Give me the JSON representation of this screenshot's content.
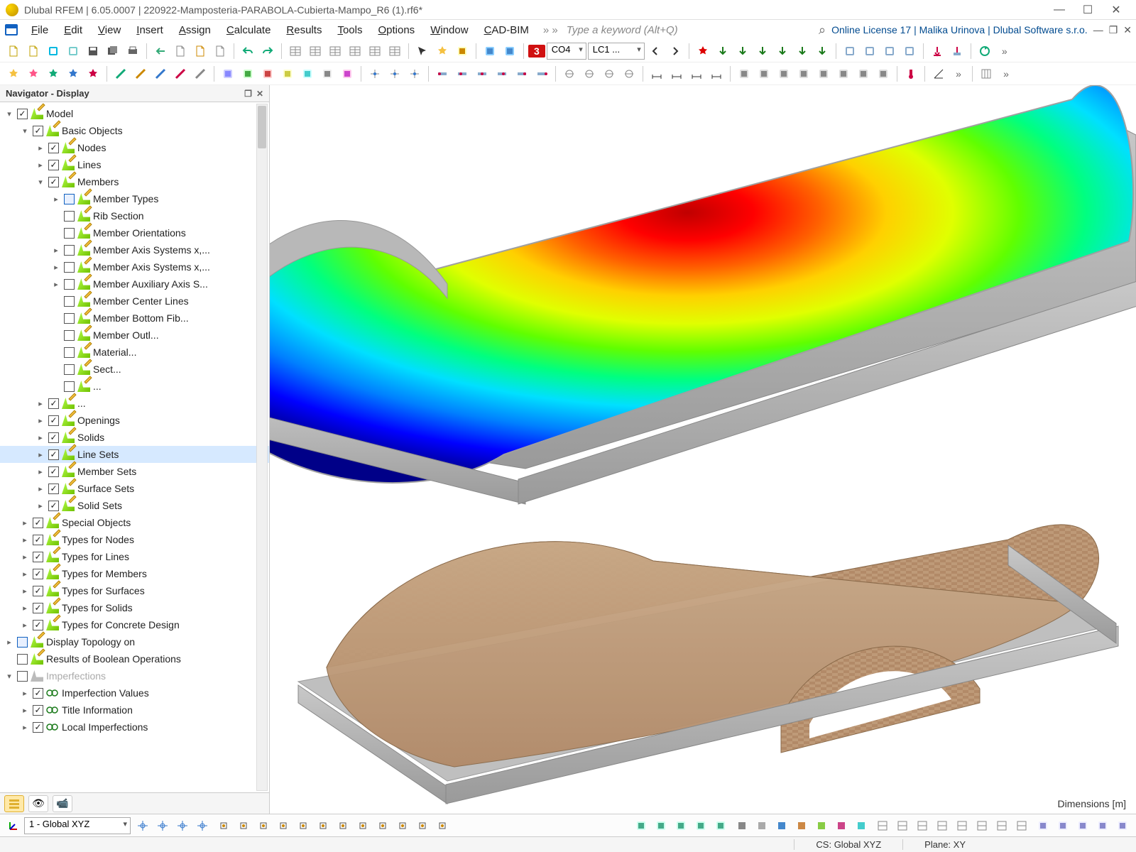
{
  "window": {
    "title": "Dlubal RFEM | 6.05.0007 | 220922-Mamposteria-PARABOLA-Cubierta-Mampo_R6 (1).rf6*",
    "min": "—",
    "max": "☐",
    "close": "✕"
  },
  "menu": {
    "items": [
      "File",
      "Edit",
      "View",
      "Insert",
      "Assign",
      "Calculate",
      "Results",
      "Tools",
      "Options",
      "Window",
      "CAD-BIM"
    ],
    "chevrons": "»  »",
    "keyword_placeholder": "Type a keyword (Alt+Q)",
    "search_icon": "⌕",
    "license_text": "Online License 17 | Malika Urinova | Dlubal Software s.r.o.",
    "mdi_min": "—",
    "mdi_close": "✕",
    "mdi_restore": "❐"
  },
  "toolbar1": {
    "red_number": "3",
    "combo_co": "CO4",
    "combo_lc": "LC1 ..."
  },
  "navigator": {
    "title": "Navigator - Display",
    "detach": "❐",
    "close": "✕",
    "tree": [
      {
        "d": 0,
        "tw": "▾",
        "chk": true,
        "ic": "pencil",
        "label": "Model"
      },
      {
        "d": 1,
        "tw": "▾",
        "chk": true,
        "ic": "pencil",
        "label": "Basic Objects"
      },
      {
        "d": 2,
        "tw": "▸",
        "chk": true,
        "ic": "pencil",
        "label": "Nodes"
      },
      {
        "d": 2,
        "tw": "▸",
        "chk": true,
        "ic": "pencil",
        "label": "Lines"
      },
      {
        "d": 2,
        "tw": "▾",
        "chk": true,
        "ic": "pencil",
        "label": "Members"
      },
      {
        "d": 3,
        "tw": "▸",
        "chk": false,
        "ic": "pencil",
        "label": "Member Types",
        "cbstyle": "blue"
      },
      {
        "d": 3,
        "tw": "",
        "chk": false,
        "ic": "pencil",
        "label": "Rib Section"
      },
      {
        "d": 3,
        "tw": "",
        "chk": false,
        "ic": "pencil",
        "label": "Member Orientations"
      },
      {
        "d": 3,
        "tw": "▸",
        "chk": false,
        "ic": "pencil",
        "label": "Member Axis Systems x,..."
      },
      {
        "d": 3,
        "tw": "▸",
        "chk": false,
        "ic": "pencil",
        "label": "Member Axis Systems x,..."
      },
      {
        "d": 3,
        "tw": "▸",
        "chk": false,
        "ic": "pencil",
        "label": "Member Auxiliary Axis S..."
      },
      {
        "d": 3,
        "tw": "",
        "chk": false,
        "ic": "pencil",
        "label": "Member Center Lines"
      },
      {
        "d": 3,
        "tw": "",
        "chk": false,
        "ic": "pencil",
        "label": "Member Bottom Fib..."
      },
      {
        "d": 3,
        "tw": "",
        "chk": false,
        "ic": "pencil",
        "label": "Member Outl..."
      },
      {
        "d": 3,
        "tw": "",
        "chk": false,
        "ic": "pencil",
        "label": "Material..."
      },
      {
        "d": 3,
        "tw": "",
        "chk": false,
        "ic": "pencil",
        "label": "Sect..."
      },
      {
        "d": 3,
        "tw": "",
        "chk": false,
        "ic": "pencil",
        "label": "..."
      },
      {
        "d": 2,
        "tw": "▸",
        "chk": true,
        "ic": "pencil",
        "label": "..."
      },
      {
        "d": 2,
        "tw": "▸",
        "chk": true,
        "ic": "pencil",
        "label": "Openings"
      },
      {
        "d": 2,
        "tw": "▸",
        "chk": true,
        "ic": "pencil",
        "label": "Solids"
      },
      {
        "d": 2,
        "tw": "▸",
        "chk": true,
        "ic": "pencil",
        "label": "Line Sets",
        "sel": true
      },
      {
        "d": 2,
        "tw": "▸",
        "chk": true,
        "ic": "pencil",
        "label": "Member Sets"
      },
      {
        "d": 2,
        "tw": "▸",
        "chk": true,
        "ic": "pencil",
        "label": "Surface Sets"
      },
      {
        "d": 2,
        "tw": "▸",
        "chk": true,
        "ic": "pencil",
        "label": "Solid Sets"
      },
      {
        "d": 1,
        "tw": "▸",
        "chk": true,
        "ic": "pencil",
        "label": "Special Objects"
      },
      {
        "d": 1,
        "tw": "▸",
        "chk": true,
        "ic": "pencil",
        "label": "Types for Nodes"
      },
      {
        "d": 1,
        "tw": "▸",
        "chk": true,
        "ic": "pencil",
        "label": "Types for Lines"
      },
      {
        "d": 1,
        "tw": "▸",
        "chk": true,
        "ic": "pencil",
        "label": "Types for Members"
      },
      {
        "d": 1,
        "tw": "▸",
        "chk": true,
        "ic": "pencil",
        "label": "Types for Surfaces"
      },
      {
        "d": 1,
        "tw": "▸",
        "chk": true,
        "ic": "pencil",
        "label": "Types for Solids"
      },
      {
        "d": 1,
        "tw": "▸",
        "chk": true,
        "ic": "pencil",
        "label": "Types for Concrete Design"
      },
      {
        "d": 0,
        "tw": "▸",
        "chk": false,
        "ic": "pencil",
        "label": "Display Topology on",
        "cbstyle": "blue"
      },
      {
        "d": 0,
        "tw": "",
        "chk": false,
        "ic": "pencil",
        "label": "Results of Boolean Operations"
      },
      {
        "d": 0,
        "tw": "▾",
        "chk": false,
        "ic": "grey",
        "label": "Imperfections",
        "dis": true
      },
      {
        "d": 1,
        "tw": "▸",
        "chk": true,
        "ic": "imp",
        "label": "Imperfection Values"
      },
      {
        "d": 1,
        "tw": "▸",
        "chk": true,
        "ic": "imp",
        "label": "Title Information"
      },
      {
        "d": 1,
        "tw": "▸",
        "chk": true,
        "ic": "imp",
        "label": "Local Imperfections"
      }
    ],
    "tabs": {
      "data": "☰",
      "eye": "👁",
      "cam": "📹"
    }
  },
  "viewport": {
    "dimensions_label": "Dimensions [m]",
    "contour_colors": [
      "#000088",
      "#0000ff",
      "#0080ff",
      "#00e0ff",
      "#00ff80",
      "#60ff00",
      "#e0ff00",
      "#ffd000",
      "#ff6000",
      "#ff0000",
      "#c00000"
    ],
    "beam_color": "#9a9a9a",
    "brick_color": "#b28a68",
    "brick_highlight": "#c9a987",
    "background": "#ffffff"
  },
  "bottom_bar": {
    "combo_cs": "1 - Global XYZ"
  },
  "status": {
    "cs": "CS: Global XYZ",
    "plane": "Plane: XY"
  }
}
